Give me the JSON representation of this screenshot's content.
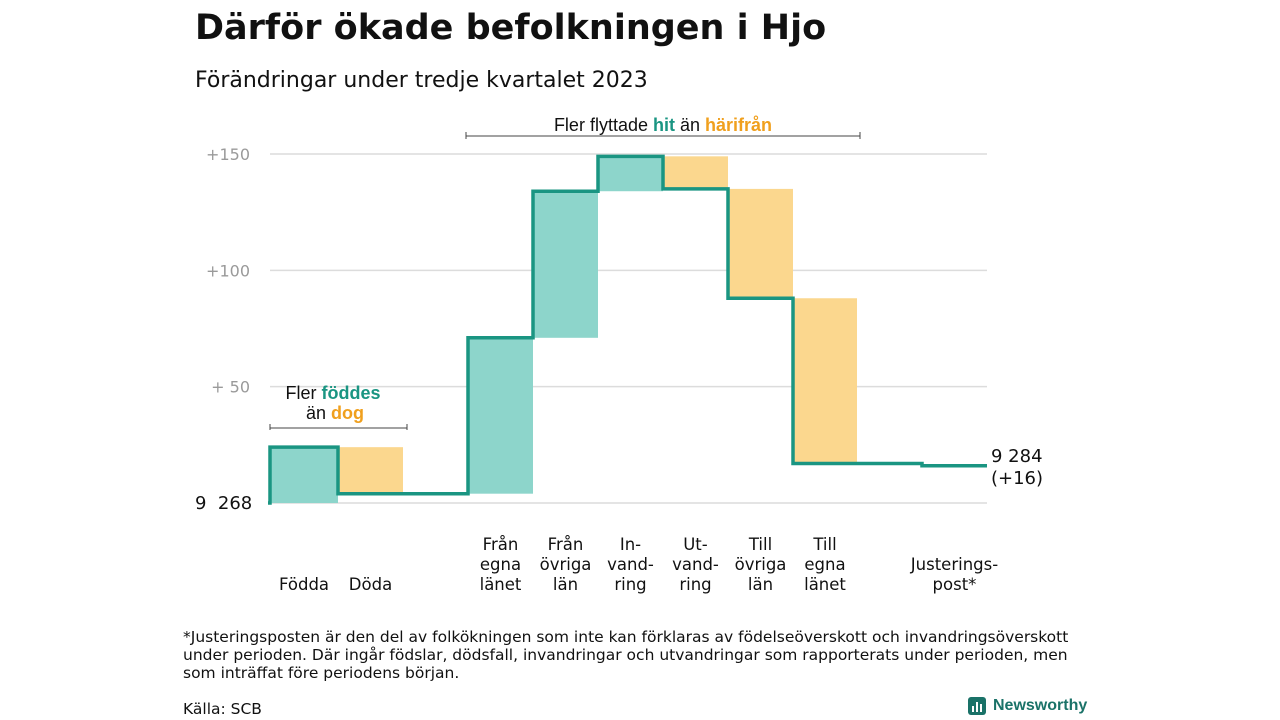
{
  "title": "Därför ökade befolkningen i Hjo",
  "subtitle": "Förändringar under tredje kvartalet 2023",
  "footnote": "*Justeringsposten är den del av folkökningen som inte kan förklaras av födelseöverskott och invandringsöverskott under perioden. Där ingår födslar, dödsfall, invandringar och utvandringar som rapporterats under perioden, men som inträffat före periodens början.",
  "source": "Källa: SCB",
  "brand": "Newsworthy",
  "colors": {
    "positive": "#8dd5cb",
    "negative": "#fbd78e",
    "line": "#1a9582",
    "grid": "#dcdcdc",
    "tick": "#9a9a9a",
    "hit": "#1a9582",
    "harifran": "#f0a01e"
  },
  "annotations": {
    "births": {
      "line1_prefix": "Fler ",
      "line1_highlight": "föddes",
      "line2_prefix": "än ",
      "line2_highlight": "dog"
    },
    "migration": {
      "prefix": "Fler flyttade ",
      "highlight1": "hit",
      "middle": " än ",
      "highlight2": "härifrån"
    }
  },
  "chart_data": {
    "type": "waterfall",
    "title": "Därför ökade befolkningen i Hjo",
    "subtitle": "Förändringar under tredje kvartalet 2023",
    "start": {
      "label": "9  268",
      "value": 0
    },
    "end": {
      "label_line1": "9 284",
      "label_line2": "(+16)",
      "value": 16
    },
    "ylim": [
      0,
      150
    ],
    "yticks": [
      {
        "value": 50,
        "label": "+  50"
      },
      {
        "value": 100,
        "label": "+100"
      },
      {
        "value": 150,
        "label": "+150"
      }
    ],
    "steps": [
      {
        "label": [
          "",
          "",
          "Födda"
        ],
        "change": 24
      },
      {
        "label": [
          "",
          "",
          "Döda"
        ],
        "change": -20
      },
      {
        "label": [
          "Från",
          "egna",
          "länet"
        ],
        "change": 67
      },
      {
        "label": [
          "Från",
          "övriga",
          "län"
        ],
        "change": 63
      },
      {
        "label": [
          "In-",
          "vand-",
          "ring"
        ],
        "change": 15
      },
      {
        "label": [
          "Ut-",
          "vand-",
          "ring"
        ],
        "change": -14
      },
      {
        "label": [
          "Till",
          "övriga",
          "län"
        ],
        "change": -47
      },
      {
        "label": [
          "Till",
          "egna",
          "länet"
        ],
        "change": -71
      },
      {
        "label": [
          "",
          "Justerings-",
          "post*"
        ],
        "change": -1
      }
    ],
    "grid": true
  }
}
